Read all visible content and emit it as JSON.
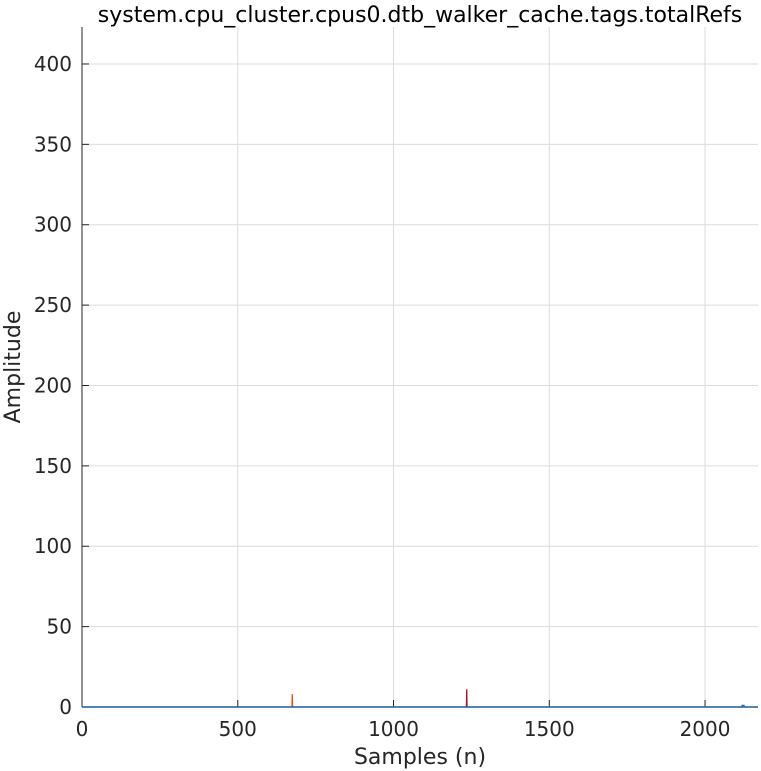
{
  "chart_data": {
    "type": "line",
    "title": "system.cpu_cluster.cpus0.dtb_walker_cache.tags.totalRefs",
    "xlabel": "Samples (n)",
    "ylabel": "Amplitude",
    "xlim": [
      0,
      2170
    ],
    "ylim": [
      0,
      423
    ],
    "xticks": [
      0,
      500,
      1000,
      1500,
      2000
    ],
    "yticks": [
      0,
      50,
      100,
      150,
      200,
      250,
      300,
      350,
      400
    ],
    "grid": true,
    "series": [
      {
        "color": "#d95319",
        "points": [
          [
            0,
            0
          ],
          [
            674,
            0
          ],
          [
            675,
            8
          ],
          [
            676,
            0
          ],
          [
            2170,
            0
          ]
        ]
      },
      {
        "color": "#a2142f",
        "points": [
          [
            0,
            0
          ],
          [
            1234,
            0
          ],
          [
            1235,
            11
          ],
          [
            1236,
            0
          ],
          [
            2170,
            0
          ]
        ]
      },
      {
        "color": "#0072bd",
        "points": [
          [
            0,
            0
          ],
          [
            2118,
            0
          ],
          [
            2119,
            1
          ],
          [
            2125,
            1
          ],
          [
            2126,
            0
          ],
          [
            2170,
            0
          ]
        ]
      }
    ]
  }
}
